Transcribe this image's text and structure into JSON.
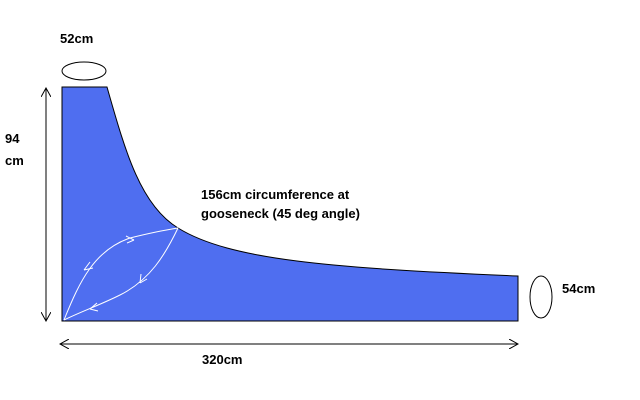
{
  "labels": {
    "top_circumference": "52cm",
    "height": [
      "94",
      "cm"
    ],
    "gooseneck": [
      "156cm circumference at",
      "gooseneck (45 deg angle)"
    ],
    "end_circumference": "54cm",
    "length": "320cm"
  }
}
